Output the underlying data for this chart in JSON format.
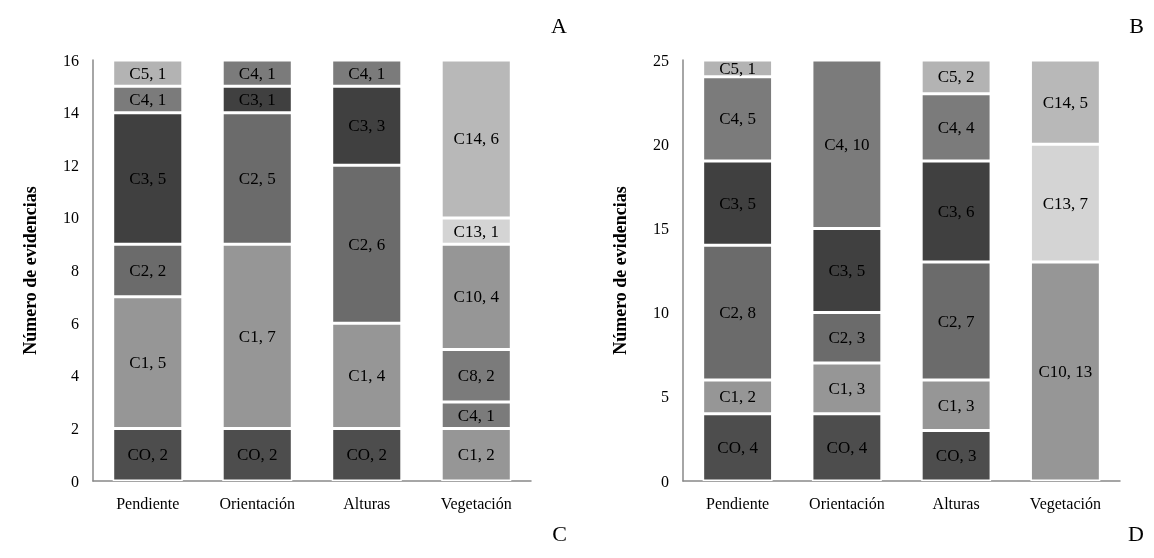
{
  "chart_data": [
    {
      "type": "bar",
      "stacked": true,
      "ylabel": "Número de evidencias",
      "categories": [
        "Pendiente",
        "Orientación",
        "Alturas",
        "Vegetación"
      ],
      "ylim": [
        0,
        16
      ],
      "yticks": [
        0,
        2,
        4,
        6,
        8,
        10,
        12,
        14,
        16
      ],
      "grid": false,
      "annotations": [
        "A",
        "C"
      ],
      "series": [
        {
          "values": [
            2,
            2,
            2,
            2
          ],
          "colors": [
            "#4d4d4d",
            "#4d4d4d",
            "#4d4d4d",
            "#969696"
          ],
          "value_labels": [
            "CO, 2",
            "CO, 2",
            "CO, 2",
            "C1, 2"
          ]
        },
        {
          "values": [
            5,
            7,
            4,
            1
          ],
          "colors": [
            "#969696",
            "#969696",
            "#969696",
            "#7b7b7b"
          ],
          "value_labels": [
            "C1, 5",
            "C1, 7",
            "C1, 4",
            "C4, 1"
          ]
        },
        {
          "values": [
            2,
            5,
            6,
            2
          ],
          "colors": [
            "#6b6b6b",
            "#6b6b6b",
            "#6b6b6b",
            "#7b7b7b"
          ],
          "value_labels": [
            "C2, 2",
            "C2, 5",
            "C2, 6",
            "C8, 2"
          ]
        },
        {
          "values": [
            5,
            1,
            3,
            4
          ],
          "colors": [
            "#404040",
            "#404040",
            "#404040",
            "#969696"
          ],
          "value_labels": [
            "C3, 5",
            "C3, 1",
            "C3, 3",
            "C10, 4"
          ]
        },
        {
          "values": [
            1,
            1,
            1,
            1
          ],
          "colors": [
            "#7b7b7b",
            "#7b7b7b",
            "#7b7b7b",
            "#d4d4d4"
          ],
          "value_labels": [
            "C4, 1",
            "C4, 1",
            "C4, 1",
            "C13, 1"
          ]
        },
        {
          "values": [
            1,
            null,
            null,
            6
          ],
          "colors": [
            "#b3b3b3",
            "#b3b3b3",
            "#b3b3b3",
            "#b8b8b8"
          ],
          "value_labels": [
            "C5, 1",
            null,
            null,
            "C14, 6"
          ]
        }
      ]
    },
    {
      "type": "bar",
      "stacked": true,
      "ylabel": "Número de evidencias",
      "categories": [
        "Pendiente",
        "Orientación",
        "Alturas",
        "Vegetación"
      ],
      "ylim": [
        0,
        25
      ],
      "yticks": [
        0,
        5,
        10,
        15,
        20,
        25
      ],
      "grid": false,
      "annotations": [
        "B",
        "D"
      ],
      "series": [
        {
          "values": [
            4,
            4,
            3,
            13
          ],
          "colors": [
            "#4d4d4d",
            "#4d4d4d",
            "#4d4d4d",
            "#969696"
          ],
          "value_labels": [
            "CO, 4",
            "CO, 4",
            "CO, 3",
            "C10, 13"
          ]
        },
        {
          "values": [
            2,
            3,
            3,
            7
          ],
          "colors": [
            "#969696",
            "#969696",
            "#969696",
            "#d4d4d4"
          ],
          "value_labels": [
            "C1, 2",
            "C1, 3",
            "C1, 3",
            "C13, 7"
          ]
        },
        {
          "values": [
            8,
            3,
            7,
            5
          ],
          "colors": [
            "#6b6b6b",
            "#6b6b6b",
            "#6b6b6b",
            "#b8b8b8"
          ],
          "value_labels": [
            "C2, 8",
            "C2, 3",
            "C2, 7",
            "C14, 5"
          ]
        },
        {
          "values": [
            5,
            5,
            6,
            null
          ],
          "colors": [
            "#404040",
            "#404040",
            "#404040",
            "#404040"
          ],
          "value_labels": [
            "C3, 5",
            "C3, 5",
            "C3, 6",
            null
          ]
        },
        {
          "values": [
            5,
            10,
            4,
            null
          ],
          "colors": [
            "#7b7b7b",
            "#7b7b7b",
            "#7b7b7b",
            "#7b7b7b"
          ],
          "value_labels": [
            "C4, 5",
            "C4, 10",
            "C4, 4",
            null
          ]
        },
        {
          "values": [
            1,
            null,
            2,
            null
          ],
          "colors": [
            "#b3b3b3",
            "#b3b3b3",
            "#b3b3b3",
            "#b3b3b3"
          ],
          "value_labels": [
            "C5, 1",
            null,
            "C5, 2",
            null
          ]
        }
      ]
    }
  ]
}
